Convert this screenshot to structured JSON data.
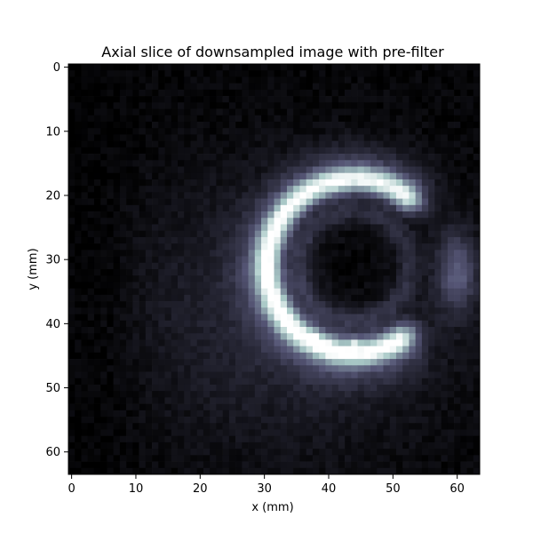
{
  "chart_data": {
    "type": "heatmap",
    "title": "Axial slice of downsampled image with pre-filter",
    "xlabel": "x (mm)",
    "ylabel": "y (mm)",
    "xlim": [
      -0.5,
      63.5
    ],
    "ylim": [
      63.5,
      -0.5
    ],
    "xticks": [
      0,
      10,
      20,
      30,
      40,
      50,
      60
    ],
    "yticks": [
      0,
      10,
      20,
      30,
      40,
      50,
      60
    ],
    "grid_size": [
      64,
      64
    ],
    "colormap": "bone",
    "grid": false,
    "legend": "none",
    "features": [
      {
        "name": "bright-arc",
        "shape": "partial-ring",
        "center": [
          44,
          31
        ],
        "radius": 13.5,
        "width": 1.4,
        "angle_from_deg": 60,
        "angle_to_deg": 305,
        "intensity": 0.78
      },
      {
        "name": "arc-hotspots",
        "points": [
          [
            40,
            44
          ],
          [
            44,
            43
          ],
          [
            38,
            42
          ],
          [
            41,
            18
          ]
        ],
        "intensity": 0.98
      },
      {
        "name": "dark-interior",
        "center": [
          44,
          31
        ],
        "radius": 10.5,
        "intensity": 0.02
      },
      {
        "name": "dim-background-blob",
        "center": [
          34,
          38
        ],
        "radius_x": 26,
        "radius_y": 22,
        "intensity": 0.16
      },
      {
        "name": "right-lobe",
        "center": [
          60,
          32
        ],
        "radius_x": 3,
        "radius_y": 6,
        "intensity": 0.34
      }
    ]
  }
}
